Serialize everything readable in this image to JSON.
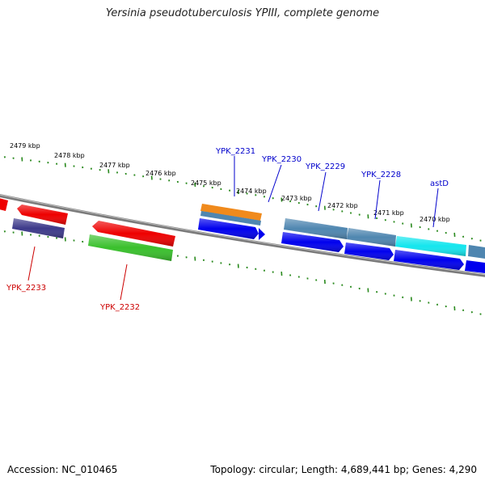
{
  "title": "Yersinia pseudotuberculosis YPIII, complete genome",
  "footer": {
    "accession": "Accession: NC_010465",
    "topology": "Topology: circular; Length: 4,689,441 bp; Genes: 4,290"
  },
  "ruler_labels": [
    "2479 kbp",
    "2478 kbp",
    "2477 kbp",
    "2476 kbp",
    "2475 kbp",
    "2474 kbp",
    "2473 kbp",
    "2472 kbp",
    "2471 kbp",
    "2470 kbp"
  ],
  "forward_gene_labels": [
    "YPK_2231",
    "YPK_2230",
    "YPK_2229",
    "YPK_2228",
    "astD"
  ],
  "reverse_gene_labels": [
    "YPK_2233",
    "YPK_2232"
  ],
  "colors": {
    "forward_label": "#0000cc",
    "reverse_label": "#cc0000",
    "tick": "#2a8a1e",
    "backbone": "#777777",
    "cds_blue": "#0000ee",
    "cds_red": "#ee0000",
    "orange": "#f08a1c",
    "steelblue": "#4f86b0",
    "cyan": "#14e6ee",
    "green": "#39c02c",
    "purple": "#3d3a8a"
  }
}
